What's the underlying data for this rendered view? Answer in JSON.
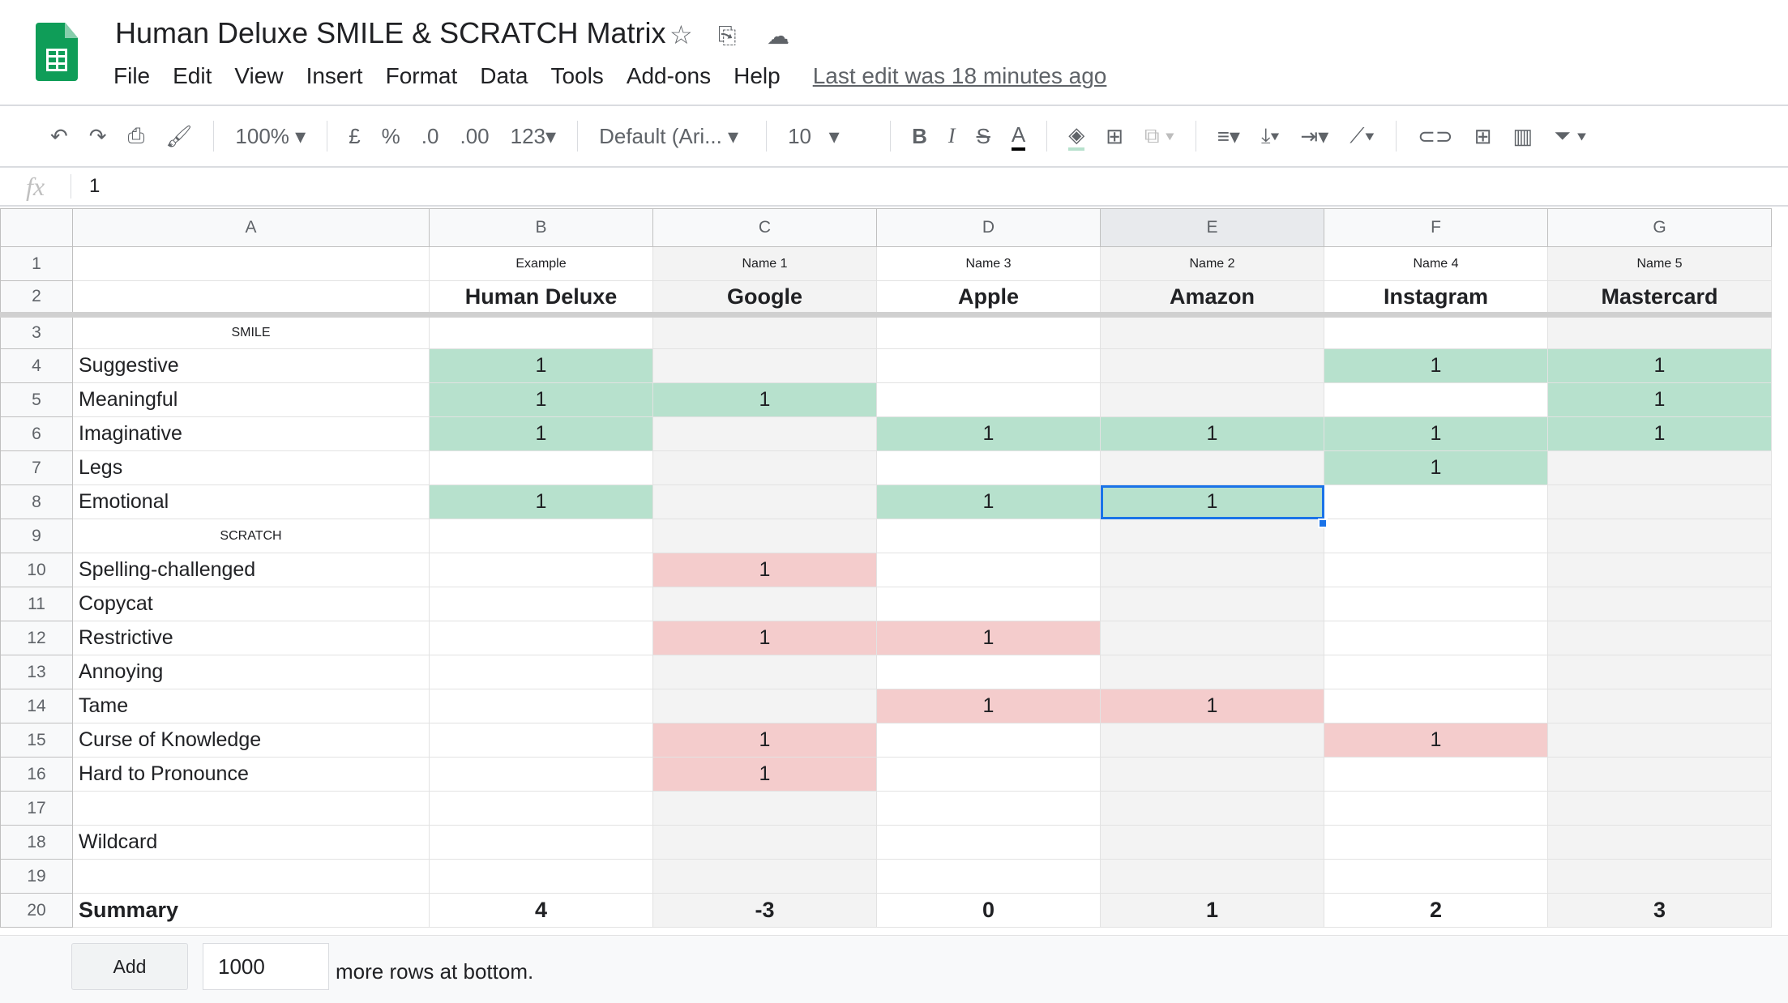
{
  "app": {
    "title": "Human Deluxe SMILE & SCRATCH Matrix",
    "last_edit": "Last edit was 18 minutes ago"
  },
  "menu": [
    "File",
    "Edit",
    "View",
    "Insert",
    "Format",
    "Data",
    "Tools",
    "Add-ons",
    "Help"
  ],
  "toolbar": {
    "zoom": "100%",
    "currency": "£",
    "percent": "%",
    "dec_less": ".0",
    "dec_more": ".00",
    "format_more": "123",
    "font": "Default (Ari...",
    "font_size": "10",
    "icons": [
      "undo-icon",
      "redo-icon",
      "print-icon",
      "paint-format-icon",
      "bold-icon",
      "italic-icon",
      "strikethrough-icon",
      "text-color-icon",
      "fill-color-icon",
      "borders-icon",
      "merge-icon",
      "align-icon",
      "valign-icon",
      "wrap-icon",
      "rotate-icon",
      "link-icon",
      "comment-icon",
      "chart-icon",
      "filter-icon"
    ]
  },
  "formula_bar": {
    "value": "1"
  },
  "colors": {
    "green": "#b7e1cd",
    "red": "#f4cccc",
    "selection": "#1a73e8"
  },
  "columns": [
    "A",
    "B",
    "C",
    "D",
    "E",
    "F",
    "G"
  ],
  "selected_cell": "E8",
  "rows": [
    {
      "n": "1",
      "label": "",
      "style": "small",
      "cells": [
        "Example",
        "Name 1",
        "Name 3",
        "Name 2",
        "Name 4",
        "Name 5"
      ],
      "fill": [
        "",
        "",
        "",
        "",
        "",
        ""
      ]
    },
    {
      "n": "2",
      "label": "",
      "style": "bold",
      "cells": [
        "Human Deluxe",
        "Google",
        "Apple",
        "Amazon",
        "Instagram",
        "Mastercard"
      ],
      "fill": [
        "",
        "",
        "",
        "",
        "",
        ""
      ]
    },
    {
      "n": "3",
      "label": "SMILE",
      "style": "section",
      "cells": [
        "",
        "",
        "",
        "",
        "",
        ""
      ],
      "fill": [
        "",
        "",
        "",
        "",
        "",
        ""
      ]
    },
    {
      "n": "4",
      "label": "Suggestive",
      "cells": [
        "1",
        "",
        "",
        "",
        "1",
        "1"
      ],
      "fill": [
        "g",
        "",
        "",
        "",
        "g",
        "g"
      ]
    },
    {
      "n": "5",
      "label": "Meaningful",
      "cells": [
        "1",
        "1",
        "",
        "",
        "",
        "1"
      ],
      "fill": [
        "g",
        "g",
        "",
        "",
        "",
        "g"
      ]
    },
    {
      "n": "6",
      "label": "Imaginative",
      "cells": [
        "1",
        "",
        "1",
        "1",
        "1",
        "1"
      ],
      "fill": [
        "g",
        "",
        "g",
        "g",
        "g",
        "g"
      ]
    },
    {
      "n": "7",
      "label": "Legs",
      "cells": [
        "",
        "",
        "",
        "",
        "1",
        ""
      ],
      "fill": [
        "",
        "",
        "",
        "",
        "g",
        ""
      ]
    },
    {
      "n": "8",
      "label": "Emotional",
      "cells": [
        "1",
        "",
        "1",
        "1",
        "",
        ""
      ],
      "fill": [
        "g",
        "",
        "g",
        "g",
        "",
        ""
      ]
    },
    {
      "n": "9",
      "label": "SCRATCH",
      "style": "section",
      "cells": [
        "",
        "",
        "",
        "",
        "",
        ""
      ],
      "fill": [
        "",
        "",
        "",
        "",
        "",
        ""
      ]
    },
    {
      "n": "10",
      "label": "Spelling-challenged",
      "cells": [
        "",
        "1",
        "",
        "",
        "",
        ""
      ],
      "fill": [
        "",
        "r",
        "",
        "",
        "",
        ""
      ]
    },
    {
      "n": "11",
      "label": "Copycat",
      "cells": [
        "",
        "",
        "",
        "",
        "",
        ""
      ],
      "fill": [
        "",
        "",
        "",
        "",
        "",
        ""
      ]
    },
    {
      "n": "12",
      "label": "Restrictive",
      "cells": [
        "",
        "1",
        "1",
        "",
        "",
        ""
      ],
      "fill": [
        "",
        "r",
        "r",
        "",
        "",
        ""
      ]
    },
    {
      "n": "13",
      "label": "Annoying",
      "cells": [
        "",
        "",
        "",
        "",
        "",
        ""
      ],
      "fill": [
        "",
        "",
        "",
        "",
        "",
        ""
      ]
    },
    {
      "n": "14",
      "label": "Tame",
      "cells": [
        "",
        "",
        "1",
        "1",
        "",
        ""
      ],
      "fill": [
        "",
        "",
        "r",
        "r",
        "",
        ""
      ]
    },
    {
      "n": "15",
      "label": "Curse of Knowledge",
      "cells": [
        "",
        "1",
        "",
        "",
        "1",
        ""
      ],
      "fill": [
        "",
        "r",
        "",
        "",
        "r",
        ""
      ]
    },
    {
      "n": "16",
      "label": "Hard to Pronounce",
      "cells": [
        "",
        "1",
        "",
        "",
        "",
        ""
      ],
      "fill": [
        "",
        "r",
        "",
        "",
        "",
        ""
      ]
    },
    {
      "n": "17",
      "label": "",
      "cells": [
        "",
        "",
        "",
        "",
        "",
        ""
      ],
      "fill": [
        "",
        "",
        "",
        "",
        "",
        ""
      ]
    },
    {
      "n": "18",
      "label": "Wildcard",
      "cells": [
        "",
        "",
        "",
        "",
        "",
        ""
      ],
      "fill": [
        "",
        "",
        "",
        "",
        "",
        ""
      ]
    },
    {
      "n": "19",
      "label": "",
      "cells": [
        "",
        "",
        "",
        "",
        "",
        ""
      ],
      "fill": [
        "",
        "",
        "",
        "",
        "",
        ""
      ]
    },
    {
      "n": "20",
      "label": "Summary",
      "style": "summary",
      "cells": [
        "4",
        "-3",
        "0",
        "1",
        "2",
        "3"
      ],
      "fill": [
        "",
        "",
        "",
        "",
        "",
        ""
      ]
    }
  ],
  "footer": {
    "add_label": "Add",
    "rows_value": "1000",
    "more_text": "more rows at bottom."
  }
}
